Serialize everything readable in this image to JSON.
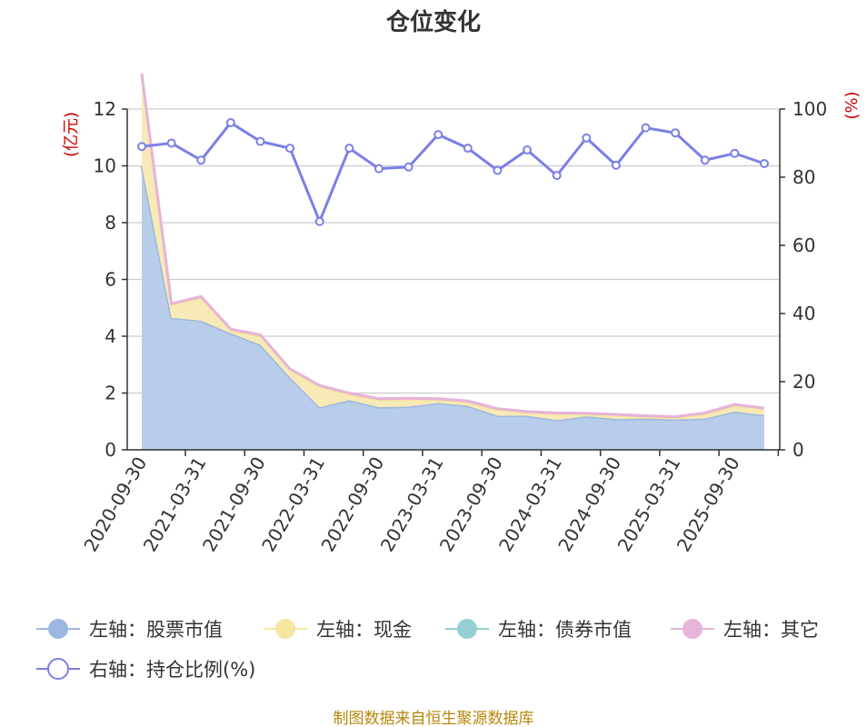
{
  "chart_data": {
    "type": "area",
    "title": "仓位变化",
    "source": "制图数据来自恒生聚源数据库",
    "left_axis": {
      "unit": "(亿元)",
      "ylim": [
        0,
        12
      ],
      "ticks": [
        "0",
        "2",
        "4",
        "6",
        "8",
        "10",
        "12"
      ]
    },
    "right_axis": {
      "unit": "(%)",
      "ylim": [
        0,
        100
      ],
      "ticks": [
        "0",
        "20",
        "40",
        "60",
        "80",
        "100"
      ]
    },
    "x_tick_labels": [
      "2020-09-30",
      "2021-03-31",
      "2021-09-30",
      "2022-03-31",
      "2022-09-30",
      "2023-03-31",
      "2023-09-30",
      "2024-03-31",
      "2024-09-30",
      "2025-03-31",
      "2025-09-30"
    ],
    "x": [
      "2020-09-30",
      "2020-12-31",
      "2021-03-31",
      "2021-06-30",
      "2021-09-30",
      "2021-12-31",
      "2022-03-31",
      "2022-06-30",
      "2022-09-30",
      "2022-12-31",
      "2023-03-31",
      "2023-06-30",
      "2023-09-30",
      "2023-12-31",
      "2024-03-31",
      "2024-06-30",
      "2024-09-30",
      "2024-12-31",
      "2025-03-31",
      "2025-06-30",
      "2025-09-30",
      "2025-12-31"
    ],
    "grid": true,
    "legend_position": "bottom",
    "series": [
      {
        "name": "左轴：股票市值",
        "axis": "left",
        "color": "#9bb6e0",
        "fill": "#b8cde9",
        "values": [
          10.0,
          4.65,
          4.55,
          4.1,
          3.7,
          2.55,
          1.5,
          1.75,
          1.5,
          1.52,
          1.65,
          1.55,
          1.2,
          1.2,
          1.05,
          1.18,
          1.08,
          1.1,
          1.07,
          1.1,
          1.35,
          1.22
        ]
      },
      {
        "name": "左轴：现金",
        "axis": "left",
        "color": "#f5e6a0",
        "fill": "#f8eab6",
        "values": [
          3.2,
          0.45,
          0.8,
          0.1,
          0.3,
          0.25,
          0.72,
          0.2,
          0.25,
          0.25,
          0.1,
          0.12,
          0.2,
          0.1,
          0.2,
          0.06,
          0.12,
          0.05,
          0.05,
          0.15,
          0.2,
          0.2
        ]
      },
      {
        "name": "左轴：债券市值",
        "axis": "left",
        "color": "#96cfd3",
        "fill": "#96cfd3",
        "values": [
          0,
          0,
          0,
          0,
          0,
          0,
          0,
          0,
          0,
          0,
          0,
          0,
          0,
          0,
          0,
          0,
          0,
          0,
          0,
          0,
          0,
          0
        ]
      },
      {
        "name": "左轴：其它",
        "axis": "left",
        "color": "#e6b3d9",
        "fill": "#e6b3d9",
        "values": [
          0.05,
          0.05,
          0.05,
          0.05,
          0.05,
          0.05,
          0.05,
          0.05,
          0.05,
          0.05,
          0.05,
          0.05,
          0.05,
          0.05,
          0.05,
          0.05,
          0.05,
          0.05,
          0.05,
          0.05,
          0.05,
          0.05
        ]
      },
      {
        "name": "右轴：持仓比例(%)",
        "axis": "right",
        "color": "#7b7fe8",
        "values": [
          89,
          90,
          85,
          96,
          90.5,
          88.5,
          67,
          88.5,
          82.5,
          83,
          92.5,
          88.5,
          82,
          88,
          80.5,
          91.5,
          83.5,
          94.5,
          93,
          85,
          87,
          84
        ]
      }
    ]
  }
}
